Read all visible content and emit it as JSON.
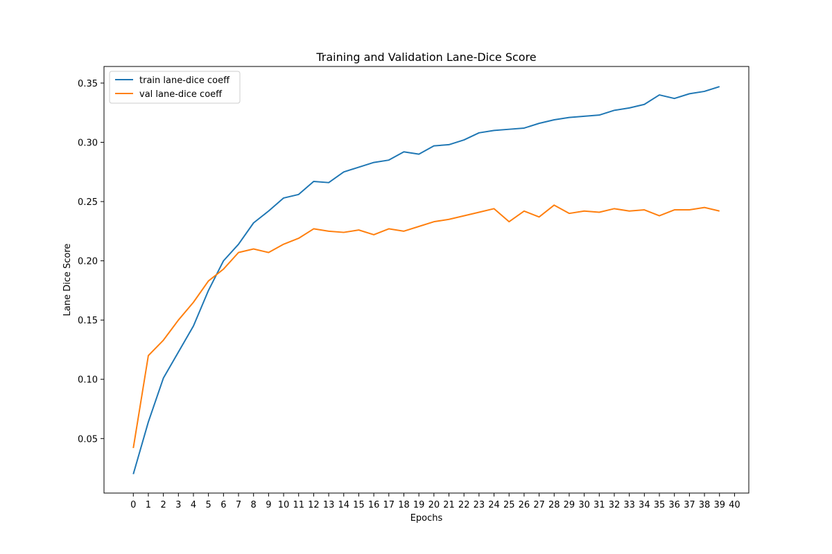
{
  "chart_data": {
    "type": "line",
    "title": "Training and Validation Lane-Dice Score",
    "xlabel": "Epochs",
    "ylabel": "Lane Dice Score",
    "x": [
      0,
      1,
      2,
      3,
      4,
      5,
      6,
      7,
      8,
      9,
      10,
      11,
      12,
      13,
      14,
      15,
      16,
      17,
      18,
      19,
      20,
      21,
      22,
      23,
      24,
      25,
      26,
      27,
      28,
      29,
      30,
      31,
      32,
      33,
      34,
      35,
      36,
      37,
      38,
      39
    ],
    "xticks": [
      0,
      1,
      2,
      3,
      4,
      5,
      6,
      7,
      8,
      9,
      10,
      11,
      12,
      13,
      14,
      15,
      16,
      17,
      18,
      19,
      20,
      21,
      22,
      23,
      24,
      25,
      26,
      27,
      28,
      29,
      30,
      31,
      32,
      33,
      34,
      35,
      36,
      37,
      38,
      39,
      40
    ],
    "xlim": [
      -1.95,
      40.95
    ],
    "yticks": [
      0.05,
      0.1,
      0.15,
      0.2,
      0.25,
      0.3,
      0.35
    ],
    "yticklabels": [
      "0.05",
      "0.10",
      "0.15",
      "0.20",
      "0.25",
      "0.30",
      "0.35"
    ],
    "ylim": [
      0.004,
      0.364
    ],
    "grid": false,
    "legend_position": "top-left",
    "series": [
      {
        "name": "train lane-dice coeff",
        "color": "#1f77b4",
        "values": [
          0.02,
          0.064,
          0.101,
          0.123,
          0.145,
          0.175,
          0.2,
          0.214,
          0.232,
          0.242,
          0.253,
          0.256,
          0.267,
          0.266,
          0.275,
          0.279,
          0.283,
          0.285,
          0.292,
          0.29,
          0.297,
          0.298,
          0.302,
          0.308,
          0.31,
          0.311,
          0.312,
          0.316,
          0.319,
          0.321,
          0.322,
          0.323,
          0.327,
          0.329,
          0.332,
          0.34,
          0.337,
          0.341,
          0.343,
          0.347
        ]
      },
      {
        "name": "val lane-dice coeff",
        "color": "#ff7f0e",
        "values": [
          0.042,
          0.12,
          0.133,
          0.15,
          0.165,
          0.183,
          0.193,
          0.207,
          0.21,
          0.207,
          0.214,
          0.219,
          0.227,
          0.225,
          0.224,
          0.226,
          0.222,
          0.227,
          0.225,
          0.229,
          0.233,
          0.235,
          0.238,
          0.241,
          0.244,
          0.233,
          0.242,
          0.237,
          0.247,
          0.24,
          0.242,
          0.241,
          0.244,
          0.242,
          0.243,
          0.238,
          0.243,
          0.243,
          0.245,
          0.242
        ]
      }
    ]
  }
}
